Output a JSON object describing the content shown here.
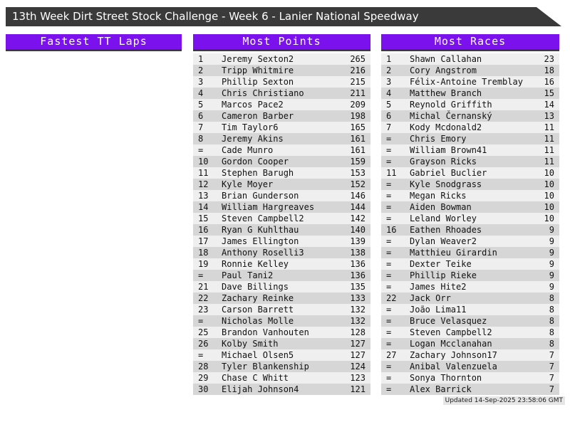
{
  "title": "13th Week Dirt Street Stock Challenge - Week 6 - Lanier National Speedway",
  "colors": {
    "accent_purple": "#7b12ee",
    "bar_dark": "#3a3a3a",
    "row_light": "#efefef",
    "row_dark": "#d6d6d6"
  },
  "sections": {
    "fastest_tt": {
      "header": "Fastest TT Laps",
      "rows": []
    },
    "most_points": {
      "header": "Most Points",
      "rows": [
        [
          "1",
          "Jeremy Sexton2",
          "265"
        ],
        [
          "2",
          "Tripp Whitmire",
          "216"
        ],
        [
          "3",
          "Phillip Sexton",
          "215"
        ],
        [
          "4",
          "Chris Christiano",
          "211"
        ],
        [
          "5",
          "Marcos Pace2",
          "209"
        ],
        [
          "6",
          "Cameron Barber",
          "198"
        ],
        [
          "7",
          "Tim Taylor6",
          "165"
        ],
        [
          "8",
          "Jeremy Akins",
          "161"
        ],
        [
          "=",
          "Cade Munro",
          "161"
        ],
        [
          "10",
          "Gordon Cooper",
          "159"
        ],
        [
          "11",
          "Stephen Barugh",
          "153"
        ],
        [
          "12",
          "Kyle Moyer",
          "152"
        ],
        [
          "13",
          "Brian Gunderson",
          "146"
        ],
        [
          "14",
          "William Hargreaves",
          "144"
        ],
        [
          "15",
          "Steven Campbell2",
          "142"
        ],
        [
          "16",
          "Ryan G Kuhlthau",
          "140"
        ],
        [
          "17",
          "James Ellington",
          "139"
        ],
        [
          "18",
          "Anthony Roselli3",
          "138"
        ],
        [
          "19",
          "Ronnie Kelley",
          "136"
        ],
        [
          "=",
          "Paul Tani2",
          "136"
        ],
        [
          "21",
          "Dave Billings",
          "135"
        ],
        [
          "22",
          "Zachary Reinke",
          "133"
        ],
        [
          "23",
          "Carson Barrett",
          "132"
        ],
        [
          "=",
          "Nicholas Molle",
          "132"
        ],
        [
          "25",
          "Brandon Vanhouten",
          "128"
        ],
        [
          "26",
          "Kolby Smith",
          "127"
        ],
        [
          "=",
          "Michael Olsen5",
          "127"
        ],
        [
          "28",
          "Tyler Blankenship",
          "124"
        ],
        [
          "29",
          "Chase C Whitt",
          "123"
        ],
        [
          "30",
          "Elijah Johnson4",
          "121"
        ]
      ]
    },
    "most_races": {
      "header": "Most Races",
      "rows": [
        [
          "1",
          "Shawn Callahan",
          "23"
        ],
        [
          "2",
          "Cory Angstrom",
          "18"
        ],
        [
          "3",
          "Félix-Antoine Tremblay",
          "16"
        ],
        [
          "4",
          "Matthew Branch",
          "15"
        ],
        [
          "5",
          "Reynold Griffith",
          "14"
        ],
        [
          "6",
          "Michal Černanský",
          "13"
        ],
        [
          "7",
          "Kody Mcdonald2",
          "11"
        ],
        [
          "=",
          "Chris Emory",
          "11"
        ],
        [
          "=",
          "William Brown41",
          "11"
        ],
        [
          "=",
          "Grayson Ricks",
          "11"
        ],
        [
          "11",
          "Gabriel Buclier",
          "10"
        ],
        [
          "=",
          "Kyle Snodgrass",
          "10"
        ],
        [
          "=",
          "Megan Ricks",
          "10"
        ],
        [
          "=",
          "Aiden Bowman",
          "10"
        ],
        [
          "=",
          "Leland Worley",
          "10"
        ],
        [
          "16",
          "Eathen Rhoades",
          "9"
        ],
        [
          "=",
          "Dylan Weaver2",
          "9"
        ],
        [
          "=",
          "Matthieu Girardin",
          "9"
        ],
        [
          "=",
          "Dexter Teike",
          "9"
        ],
        [
          "=",
          "Phillip Rieke",
          "9"
        ],
        [
          "=",
          "James Hite2",
          "9"
        ],
        [
          "22",
          "Jack Orr",
          "8"
        ],
        [
          "=",
          "João Lima11",
          "8"
        ],
        [
          "=",
          "Bruce Velasquez",
          "8"
        ],
        [
          "=",
          "Steven Campbell2",
          "8"
        ],
        [
          "=",
          "Logan Mcclanahan",
          "8"
        ],
        [
          "27",
          "Zachary Johnson17",
          "7"
        ],
        [
          "=",
          "Anibal Valenzuela",
          "7"
        ],
        [
          "=",
          "Sonya Thornton",
          "7"
        ],
        [
          "=",
          "Alex Barrick",
          "7"
        ]
      ]
    }
  },
  "footer": {
    "updated": "Updated 14-Sep-2025 23:58:06 GMT"
  }
}
